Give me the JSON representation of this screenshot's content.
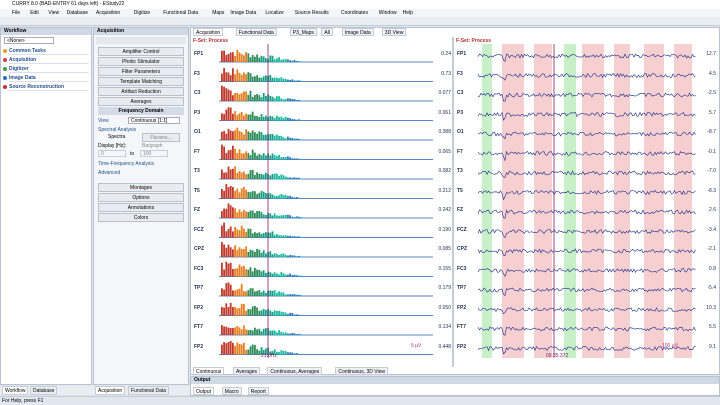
{
  "title": "CURRY 8.0 (BAD-ENTRY 61 days left) - EStudy22",
  "menu": [
    "File",
    "Edit",
    "View",
    "Database",
    "Acquisition",
    "Digitize",
    "Functional Data",
    "Maps",
    "Image Data",
    "Localize",
    "Source Results",
    "Coordinates",
    "Window",
    "Help"
  ],
  "workflow": {
    "title": "Workflow",
    "selector": "<None>",
    "items": [
      "Common Tasks",
      "Acquisition",
      "Digitizer",
      "Image Data",
      "Source Reconstruction"
    ]
  },
  "acquisition": {
    "title": "Acquisition",
    "buttons": [
      "Amplifier Control",
      "Photic Stimulator",
      "Filter Parameters",
      "Template Matching",
      "Artifact Reduction",
      "Averages"
    ],
    "section": "Frequency Domain",
    "view_label": "View",
    "view_value": "Continuous [1:1]",
    "spectral": "Spectral Analysis",
    "spectra": "Spectra",
    "params": "Params...",
    "display": "Display [Hz]:",
    "bargraph": "Bargraph",
    "from": "0",
    "to": "to",
    "upto": "100",
    "tf": "Time-Frequency Analysis",
    "advanced": "Advanced",
    "buttons2": [
      "Montages",
      "Options",
      "Annotations",
      "Colors"
    ]
  },
  "tabs": [
    "Acquisition",
    "Functional Data",
    "P3_Maps",
    "All",
    "Image Data",
    "3D View"
  ],
  "spectrum": {
    "title": "F-Set: Process",
    "scale": "5 µV",
    "freq": "21.0Hz",
    "channels": [
      {
        "label": "FP1",
        "value": "0.24"
      },
      {
        "label": "F3",
        "value": "0.73"
      },
      {
        "label": "C3",
        "value": "0.077"
      },
      {
        "label": "P3",
        "value": "0.061"
      },
      {
        "label": "O1",
        "value": "0.388"
      },
      {
        "label": "F7",
        "value": "0.065"
      },
      {
        "label": "T3",
        "value": "0.082"
      },
      {
        "label": "T5",
        "value": "0.212"
      },
      {
        "label": "FZ",
        "value": "0.242"
      },
      {
        "label": "FCZ",
        "value": "0.190"
      },
      {
        "label": "CPZ",
        "value": "0.085"
      },
      {
        "label": "FC3",
        "value": "0.155"
      },
      {
        "label": "TP7",
        "value": "0.179"
      },
      {
        "label": "FP2",
        "value": "0.050"
      },
      {
        "label": "FT7",
        "value": "0.134"
      },
      {
        "label": "FP2",
        "value": "0.448"
      }
    ]
  },
  "traces": {
    "title": "F-Set: Process",
    "scale": "100 µV",
    "cursor": "09:35.372",
    "channels": [
      {
        "label": "FP1",
        "value": "12.7"
      },
      {
        "label": "F3",
        "value": "4.5"
      },
      {
        "label": "C3",
        "value": "-2.5"
      },
      {
        "label": "P3",
        "value": "5.7"
      },
      {
        "label": "O1",
        "value": "-8.7"
      },
      {
        "label": "F7",
        "value": "-0.1"
      },
      {
        "label": "T3",
        "value": "-7.0"
      },
      {
        "label": "T5",
        "value": "-8.3"
      },
      {
        "label": "FZ",
        "value": "2.6"
      },
      {
        "label": "FCZ",
        "value": "-3.4"
      },
      {
        "label": "CPZ",
        "value": "-2.1"
      },
      {
        "label": "FC3",
        "value": "0.8"
      },
      {
        "label": "TP7",
        "value": "-5.4"
      },
      {
        "label": "FP2",
        "value": "10.3"
      },
      {
        "label": "FT7",
        "value": "5.5"
      },
      {
        "label": "FP2",
        "value": "9.1"
      }
    ]
  },
  "bottom_tabs": [
    "Continuous",
    "Averages",
    "Continuous, Averages",
    "Continuous, 3D View"
  ],
  "output": {
    "title": "Output",
    "tabs": [
      "Output",
      "Macro",
      "Report"
    ]
  },
  "dock_tabs": [
    "Workflow",
    "Database",
    "Acquisition",
    "Functional Data"
  ],
  "status": "For Help, press F1"
}
